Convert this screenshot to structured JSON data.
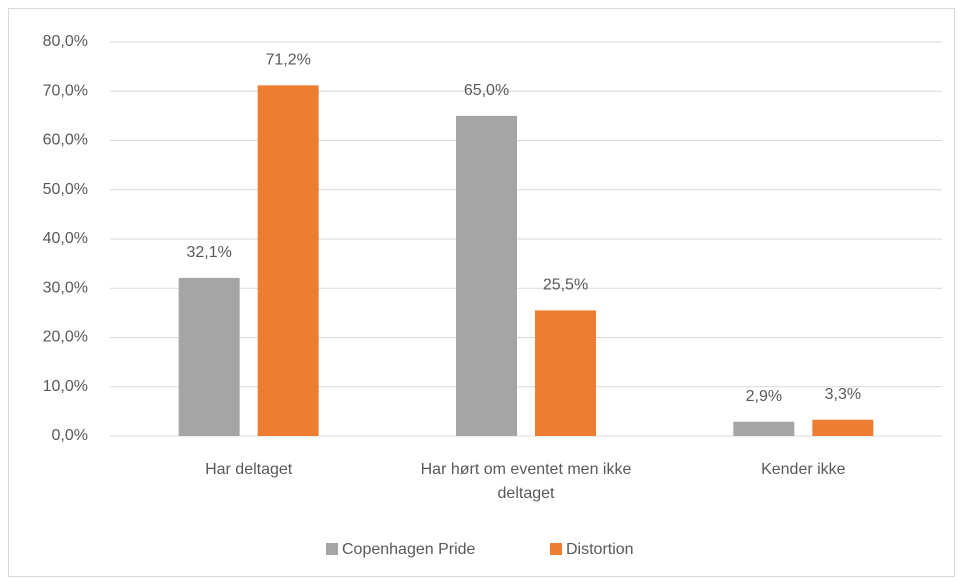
{
  "chart_data": {
    "type": "bar",
    "categories": [
      "Har deltaget",
      "Har hørt om eventet men ikke deltaget",
      "Kender ikke"
    ],
    "series": [
      {
        "name": "Copenhagen Pride",
        "color": "#a5a5a5",
        "values": [
          32.1,
          65.0,
          2.9
        ],
        "value_labels": [
          "32,1%",
          "65,0%",
          "2,9%"
        ]
      },
      {
        "name": "Distortion",
        "color": "#ed7d31",
        "values": [
          71.2,
          25.5,
          3.3
        ],
        "value_labels": [
          "71,2%",
          "25,5%",
          "3,3%"
        ]
      }
    ],
    "ylim": [
      0,
      80
    ],
    "yticks": [
      {
        "value": 0,
        "label": "0,0%"
      },
      {
        "value": 10,
        "label": "10,0%"
      },
      {
        "value": 20,
        "label": "20,0%"
      },
      {
        "value": 30,
        "label": "30,0%"
      },
      {
        "value": 40,
        "label": "40,0%"
      },
      {
        "value": 50,
        "label": "50,0%"
      },
      {
        "value": 60,
        "label": "60,0%"
      },
      {
        "value": 70,
        "label": "70,0%"
      },
      {
        "value": 80,
        "label": "80,0%"
      }
    ],
    "grid": true,
    "legend": "bottom"
  }
}
